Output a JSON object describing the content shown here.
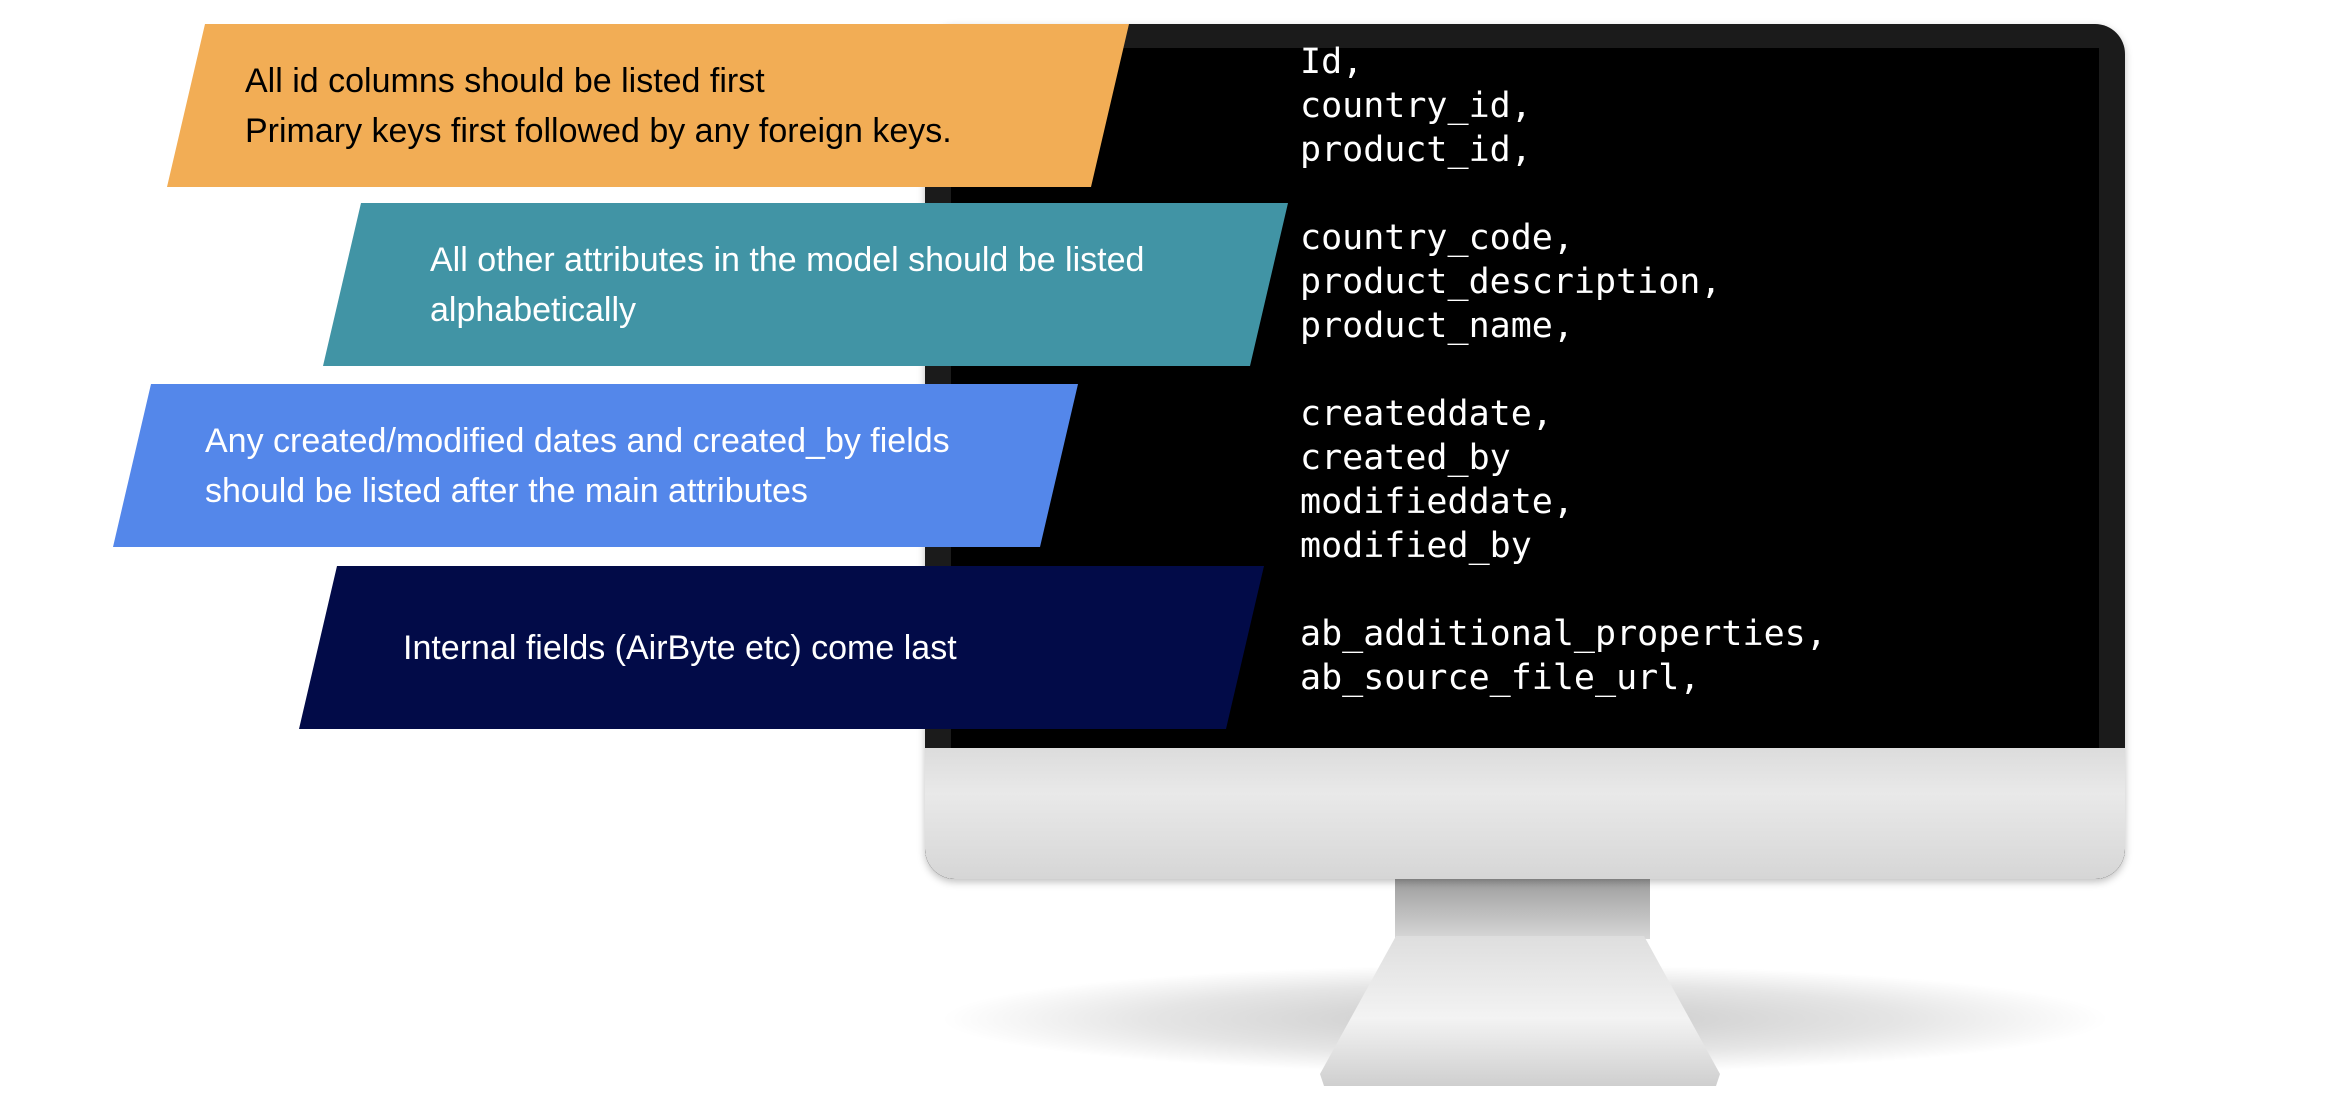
{
  "banners": [
    {
      "lines": [
        "All id columns should be listed first",
        "Primary keys first followed by any foreign keys."
      ],
      "color": "#f2ad55"
    },
    {
      "lines": [
        "All other attributes in the model should be listed",
        "alphabetically"
      ],
      "color": "#4194a5"
    },
    {
      "lines": [
        "Any created/modified dates and created_by fields",
        "should be listed after the main attributes"
      ],
      "color": "#5487ea"
    },
    {
      "lines": [
        "Internal fields (AirByte etc) come last"
      ],
      "color": "#020b48"
    }
  ],
  "code_groups": [
    [
      "Id,",
      "country_id,",
      "product_id,"
    ],
    [
      "country_code,",
      "product_description,",
      "product_name,"
    ],
    [
      "createddate,",
      "created_by",
      "modifieddate,",
      "modified_by"
    ],
    [
      "ab_additional_properties,",
      "ab_source_file_url,"
    ]
  ]
}
